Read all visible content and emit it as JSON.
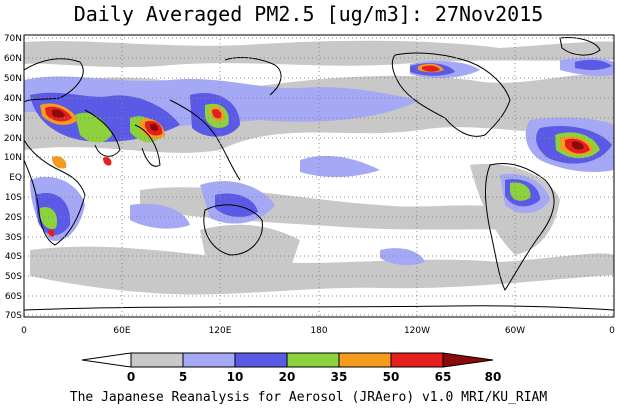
{
  "title": "Daily Averaged PM2.5 [ug/m3]: 27Nov2015",
  "footer": "The Japanese Reanalysis for Aerosol (JRAero) v1.0 MRI/KU_RIAM",
  "lat_labels": [
    "70N",
    "60N",
    "50N",
    "40N",
    "30N",
    "20N",
    "10N",
    "EQ",
    "10S",
    "20S",
    "30S",
    "40S",
    "50S",
    "60S",
    "70S"
  ],
  "lon_labels": [
    "0",
    "60E",
    "120E",
    "180",
    "120W",
    "60W",
    "0"
  ],
  "colorbar": {
    "ticks": [
      "0",
      "5",
      "10",
      "20",
      "35",
      "50",
      "65",
      "80"
    ],
    "colors": [
      "#ffffff",
      "#c8c8c8",
      "#a5a8f5",
      "#5a5ae6",
      "#8cd23c",
      "#f59b1e",
      "#e61e1e",
      "#8c0a0a"
    ]
  }
}
